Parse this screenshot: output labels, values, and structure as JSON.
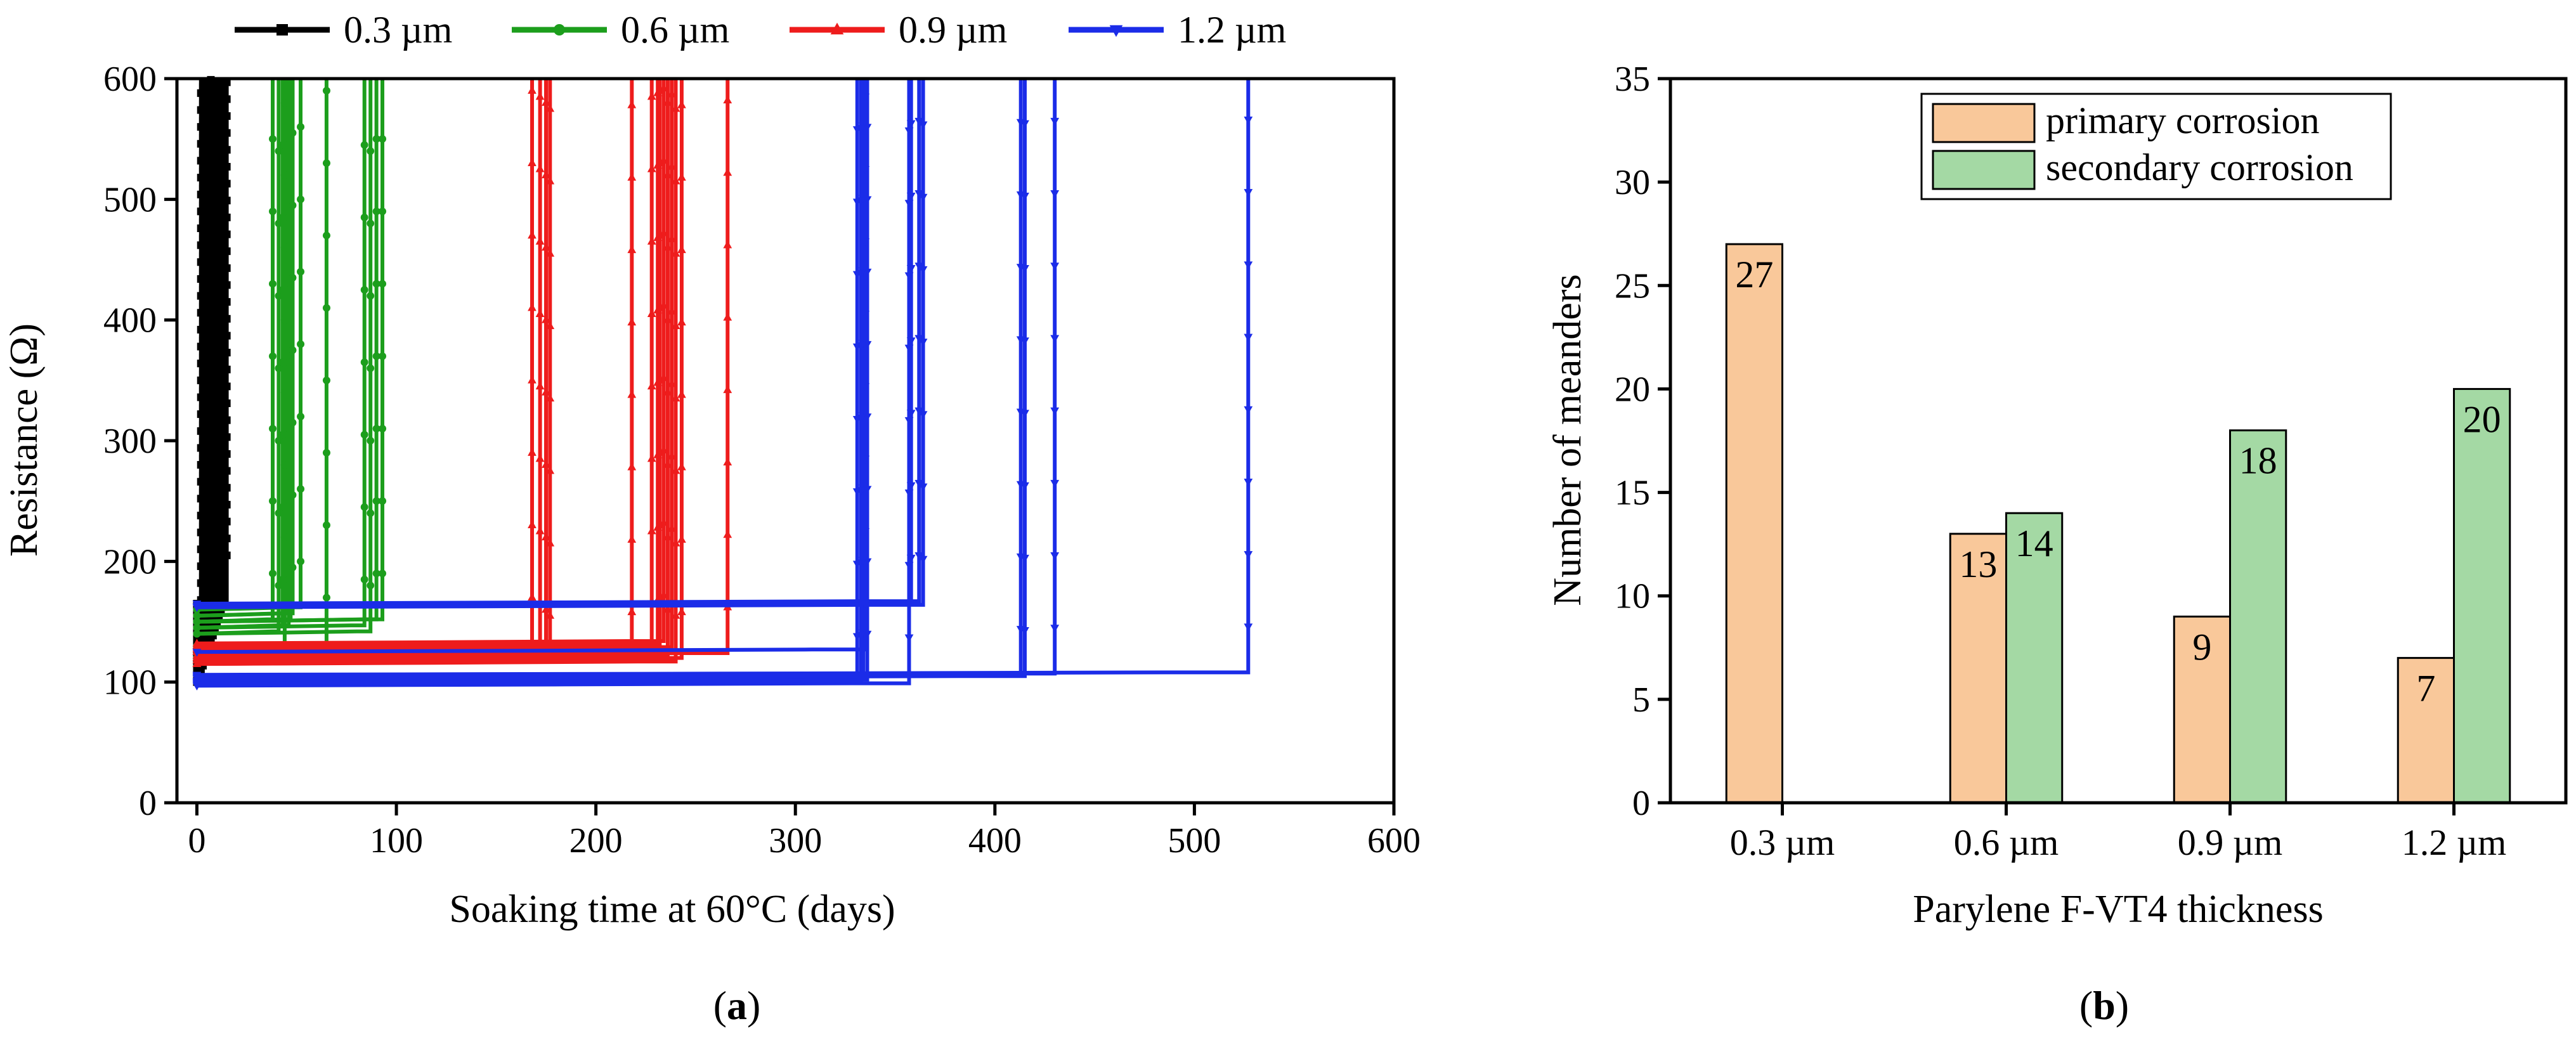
{
  "figure": {
    "panel_a_label": "a",
    "panel_b_label": "b"
  },
  "chart_data": [
    {
      "type": "line",
      "panel": "a",
      "title": "",
      "xlabel": "Soaking time at 60°C (days)",
      "ylabel": "Resistance (Ω)",
      "xlim": [
        -10,
        600
      ],
      "ylim": [
        0,
        600
      ],
      "xticks": [
        0,
        100,
        200,
        300,
        400,
        500,
        600
      ],
      "yticks": [
        0,
        100,
        200,
        300,
        400,
        500,
        600
      ],
      "legend_position": "top, outside plot",
      "series": [
        {
          "name": "0.3 µm",
          "color": "#000000",
          "marker": "square",
          "base_resistances": [
            100,
            105,
            110,
            115,
            120,
            125,
            130,
            135,
            140,
            145,
            150,
            155,
            160,
            165
          ],
          "failure_days": [
            2,
            3,
            4,
            5,
            6,
            7,
            8,
            9,
            10,
            11,
            12,
            13,
            14,
            15
          ]
        },
        {
          "name": "0.6 µm",
          "color": "#1c9e1c",
          "marker": "circle",
          "base_resistances": [
            150,
            140,
            145,
            155,
            150,
            160,
            130,
            145,
            140,
            150,
            120,
            145,
            150,
            155
          ],
          "failure_days": [
            38,
            41,
            43,
            45,
            47,
            52,
            65,
            84,
            87,
            93,
            44,
            46,
            90,
            48
          ]
        },
        {
          "name": "0.9 µm",
          "color": "#ee1c1c",
          "marker": "triangle-up",
          "base_resistances": [
            130,
            125,
            115,
            118,
            125,
            128,
            132,
            120,
            115,
            118,
            122,
            130,
            127,
            120
          ],
          "failure_days": [
            168,
            172,
            177,
            218,
            228,
            231,
            234,
            236,
            240,
            243,
            266,
            232,
            238,
            175
          ]
        },
        {
          "name": "1.2 µm",
          "color": "#1b2ce8",
          "marker": "triangle-down",
          "base_resistances": [
            98,
            101,
            100,
            163,
            165,
            103,
            105,
            106,
            162,
            125,
            97,
            99,
            104
          ],
          "failure_days": [
            331,
            334,
            336,
            358,
            362,
            415,
            430,
            527,
            364,
            335,
            357,
            333,
            413
          ]
        }
      ]
    },
    {
      "type": "bar",
      "panel": "b",
      "title": "",
      "xlabel": "Parylene F-VT4 thickness",
      "ylabel": "Number of meanders",
      "ylim": [
        0,
        35
      ],
      "yticks": [
        0,
        5,
        10,
        15,
        20,
        25,
        30,
        35
      ],
      "categories": [
        "0.3 µm",
        "0.6 µm",
        "0.9 µm",
        "1.2 µm"
      ],
      "legend_position": "top-right, inside",
      "series": [
        {
          "name": "primary corrosion",
          "color": "#f9c89a",
          "values": [
            27,
            13,
            9,
            7
          ],
          "labels": [
            "27",
            "13",
            "9",
            "7"
          ]
        },
        {
          "name": "secondary corrosion",
          "color": "#a4d9a4",
          "values": [
            0,
            14,
            18,
            20
          ],
          "labels": [
            "",
            "14",
            "18",
            "20"
          ]
        }
      ]
    }
  ]
}
